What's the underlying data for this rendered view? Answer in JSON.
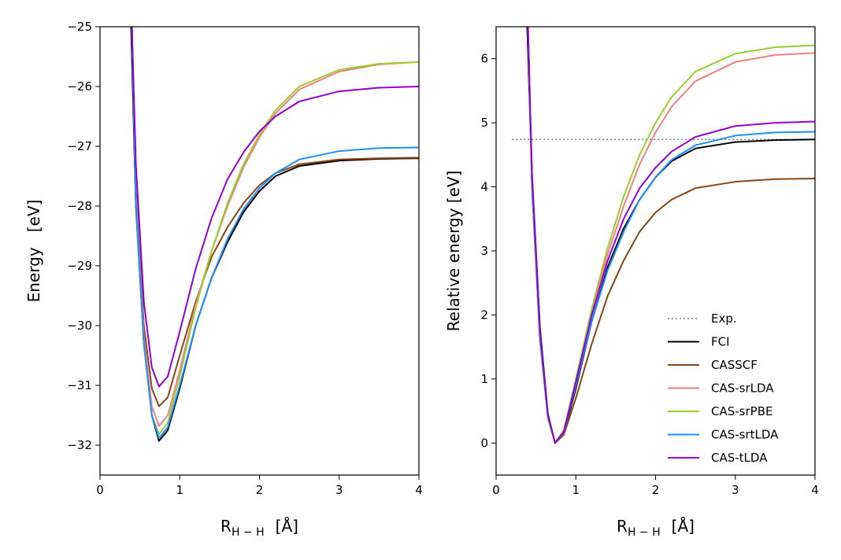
{
  "chart_data": [
    {
      "type": "line",
      "panel": "left",
      "title": "",
      "xlabel": "R",
      "xlabel_sub": "H − H",
      "xlabel_unit": "[Å]",
      "ylabel": "Energy   [eV]",
      "xlim": [
        0,
        4
      ],
      "ylim": [
        -32.5,
        -25
      ],
      "xticks": [
        0,
        1,
        2,
        3,
        4
      ],
      "xtick_labels": [
        "0",
        "1",
        "2",
        "3",
        "4"
      ],
      "yticks": [
        -32,
        -31,
        -30,
        -29,
        -28,
        -27,
        -26,
        -25
      ],
      "ytick_labels": [
        "−32",
        "−31",
        "−30",
        "−29",
        "−28",
        "−27",
        "−26",
        "−25"
      ],
      "series": [
        {
          "name": "FCI",
          "color": "#000000",
          "dashed": false,
          "points": [
            [
              0.39,
              -25.0
            ],
            [
              0.45,
              -28.0
            ],
            [
              0.55,
              -30.3
            ],
            [
              0.65,
              -31.5
            ],
            [
              0.74,
              -31.93
            ],
            [
              0.85,
              -31.75
            ],
            [
              1.0,
              -31.05
            ],
            [
              1.2,
              -30.0
            ],
            [
              1.4,
              -29.2
            ],
            [
              1.6,
              -28.6
            ],
            [
              1.8,
              -28.1
            ],
            [
              2.0,
              -27.75
            ],
            [
              2.2,
              -27.5
            ],
            [
              2.5,
              -27.33
            ],
            [
              3.0,
              -27.24
            ],
            [
              3.5,
              -27.21
            ],
            [
              4.0,
              -27.2
            ]
          ]
        },
        {
          "name": "CASSCF",
          "color": "#8b4513",
          "dashed": false,
          "points": [
            [
              0.4,
              -25.0
            ],
            [
              0.45,
              -27.7
            ],
            [
              0.55,
              -30.0
            ],
            [
              0.65,
              -31.05
            ],
            [
              0.74,
              -31.35
            ],
            [
              0.85,
              -31.2
            ],
            [
              1.0,
              -30.5
            ],
            [
              1.2,
              -29.6
            ],
            [
              1.4,
              -28.85
            ],
            [
              1.6,
              -28.35
            ],
            [
              1.8,
              -27.95
            ],
            [
              2.0,
              -27.65
            ],
            [
              2.2,
              -27.45
            ],
            [
              2.5,
              -27.3
            ],
            [
              3.0,
              -27.22
            ],
            [
              3.5,
              -27.2
            ],
            [
              4.0,
              -27.19
            ]
          ]
        },
        {
          "name": "CAS-srLDA",
          "color": "#f08080",
          "dashed": false,
          "points": [
            [
              0.4,
              -25.0
            ],
            [
              0.45,
              -27.8
            ],
            [
              0.55,
              -30.2
            ],
            [
              0.65,
              -31.35
            ],
            [
              0.74,
              -31.68
            ],
            [
              0.85,
              -31.5
            ],
            [
              1.0,
              -30.75
            ],
            [
              1.2,
              -29.65
            ],
            [
              1.4,
              -28.75
            ],
            [
              1.6,
              -28.0
            ],
            [
              1.8,
              -27.35
            ],
            [
              2.0,
              -26.85
            ],
            [
              2.2,
              -26.45
            ],
            [
              2.5,
              -26.05
            ],
            [
              3.0,
              -25.75
            ],
            [
              3.5,
              -25.63
            ],
            [
              4.0,
              -25.59
            ]
          ]
        },
        {
          "name": "CAS-srPBE",
          "color": "#9acd32",
          "dashed": false,
          "points": [
            [
              0.4,
              -25.0
            ],
            [
              0.45,
              -27.9
            ],
            [
              0.55,
              -30.3
            ],
            [
              0.65,
              -31.5
            ],
            [
              0.74,
              -31.82
            ],
            [
              0.85,
              -31.62
            ],
            [
              1.0,
              -30.85
            ],
            [
              1.2,
              -29.7
            ],
            [
              1.4,
              -28.75
            ],
            [
              1.6,
              -27.95
            ],
            [
              1.8,
              -27.3
            ],
            [
              2.0,
              -26.8
            ],
            [
              2.2,
              -26.4
            ],
            [
              2.5,
              -26.0
            ],
            [
              3.0,
              -25.72
            ],
            [
              3.5,
              -25.62
            ],
            [
              4.0,
              -25.59
            ]
          ]
        },
        {
          "name": "CAS-srtLDA",
          "color": "#1e90ff",
          "dashed": false,
          "points": [
            [
              0.4,
              -25.0
            ],
            [
              0.45,
              -27.95
            ],
            [
              0.55,
              -30.3
            ],
            [
              0.65,
              -31.5
            ],
            [
              0.74,
              -31.88
            ],
            [
              0.85,
              -31.7
            ],
            [
              1.0,
              -31.0
            ],
            [
              1.2,
              -30.0
            ],
            [
              1.4,
              -29.2
            ],
            [
              1.6,
              -28.55
            ],
            [
              1.8,
              -28.05
            ],
            [
              2.0,
              -27.7
            ],
            [
              2.2,
              -27.45
            ],
            [
              2.5,
              -27.22
            ],
            [
              3.0,
              -27.08
            ],
            [
              3.5,
              -27.03
            ],
            [
              4.0,
              -27.02
            ]
          ]
        },
        {
          "name": "CAS-tLDA",
          "color": "#9400d3",
          "dashed": false,
          "points": [
            [
              0.4,
              -25.0
            ],
            [
              0.45,
              -27.3
            ],
            [
              0.55,
              -29.6
            ],
            [
              0.65,
              -30.7
            ],
            [
              0.74,
              -31.02
            ],
            [
              0.85,
              -30.85
            ],
            [
              1.0,
              -30.1
            ],
            [
              1.2,
              -29.05
            ],
            [
              1.4,
              -28.2
            ],
            [
              1.6,
              -27.55
            ],
            [
              1.8,
              -27.1
            ],
            [
              2.0,
              -26.75
            ],
            [
              2.2,
              -26.5
            ],
            [
              2.5,
              -26.25
            ],
            [
              3.0,
              -26.08
            ],
            [
              3.5,
              -26.02
            ],
            [
              4.0,
              -26.0
            ]
          ]
        }
      ]
    },
    {
      "type": "line",
      "panel": "right",
      "title": "",
      "xlabel": "R",
      "xlabel_sub": "H − H",
      "xlabel_unit": "[Å]",
      "ylabel": "Relative energy [eV]",
      "xlim": [
        0,
        4
      ],
      "ylim": [
        -0.5,
        6.5
      ],
      "xticks": [
        0,
        1,
        2,
        3,
        4
      ],
      "xtick_labels": [
        "0",
        "1",
        "2",
        "3",
        "4"
      ],
      "yticks": [
        0,
        1,
        2,
        3,
        4,
        5,
        6
      ],
      "ytick_labels": [
        "0",
        "1",
        "2",
        "3",
        "4",
        "5",
        "6"
      ],
      "legend_position": "bottom-right",
      "series": [
        {
          "name": "Exp.",
          "color": "#808080",
          "dashed": true,
          "points": [
            [
              0.2,
              4.74
            ],
            [
              4.0,
              4.74
            ]
          ]
        },
        {
          "name": "FCI",
          "color": "#000000",
          "dashed": false,
          "points": [
            [
              0.39,
              6.5
            ],
            [
              0.45,
              4.2
            ],
            [
              0.55,
              1.8
            ],
            [
              0.65,
              0.45
            ],
            [
              0.74,
              0.0
            ],
            [
              0.85,
              0.15
            ],
            [
              1.0,
              0.85
            ],
            [
              1.2,
              1.9
            ],
            [
              1.4,
              2.75
            ],
            [
              1.6,
              3.35
            ],
            [
              1.8,
              3.8
            ],
            [
              2.0,
              4.15
            ],
            [
              2.2,
              4.4
            ],
            [
              2.5,
              4.6
            ],
            [
              3.0,
              4.7
            ],
            [
              3.5,
              4.73
            ],
            [
              4.0,
              4.74
            ]
          ]
        },
        {
          "name": "CASSCF",
          "color": "#8b4513",
          "dashed": false,
          "points": [
            [
              0.4,
              6.5
            ],
            [
              0.45,
              4.0
            ],
            [
              0.55,
              1.6
            ],
            [
              0.65,
              0.4
            ],
            [
              0.74,
              0.0
            ],
            [
              0.85,
              0.13
            ],
            [
              1.0,
              0.7
            ],
            [
              1.2,
              1.55
            ],
            [
              1.4,
              2.3
            ],
            [
              1.6,
              2.85
            ],
            [
              1.8,
              3.3
            ],
            [
              2.0,
              3.6
            ],
            [
              2.2,
              3.8
            ],
            [
              2.5,
              3.98
            ],
            [
              3.0,
              4.08
            ],
            [
              3.5,
              4.12
            ],
            [
              4.0,
              4.13
            ]
          ]
        },
        {
          "name": "CAS-srLDA",
          "color": "#f08080",
          "dashed": false,
          "points": [
            [
              0.4,
              6.5
            ],
            [
              0.45,
              4.1
            ],
            [
              0.55,
              1.65
            ],
            [
              0.65,
              0.4
            ],
            [
              0.74,
              0.0
            ],
            [
              0.85,
              0.18
            ],
            [
              1.0,
              0.95
            ],
            [
              1.2,
              2.05
            ],
            [
              1.4,
              2.95
            ],
            [
              1.6,
              3.7
            ],
            [
              1.8,
              4.35
            ],
            [
              2.0,
              4.85
            ],
            [
              2.2,
              5.25
            ],
            [
              2.5,
              5.65
            ],
            [
              3.0,
              5.95
            ],
            [
              3.5,
              6.06
            ],
            [
              4.0,
              6.09
            ]
          ]
        },
        {
          "name": "CAS-srPBE",
          "color": "#9acd32",
          "dashed": false,
          "points": [
            [
              0.4,
              6.5
            ],
            [
              0.45,
              4.1
            ],
            [
              0.55,
              1.6
            ],
            [
              0.65,
              0.38
            ],
            [
              0.74,
              0.0
            ],
            [
              0.85,
              0.2
            ],
            [
              1.0,
              1.0
            ],
            [
              1.2,
              2.1
            ],
            [
              1.4,
              3.05
            ],
            [
              1.6,
              3.85
            ],
            [
              1.8,
              4.5
            ],
            [
              2.0,
              5.0
            ],
            [
              2.2,
              5.4
            ],
            [
              2.5,
              5.8
            ],
            [
              3.0,
              6.08
            ],
            [
              3.5,
              6.18
            ],
            [
              4.0,
              6.21
            ]
          ]
        },
        {
          "name": "CAS-srtLDA",
          "color": "#1e90ff",
          "dashed": false,
          "points": [
            [
              0.4,
              6.5
            ],
            [
              0.45,
              4.1
            ],
            [
              0.55,
              1.65
            ],
            [
              0.65,
              0.42
            ],
            [
              0.74,
              0.0
            ],
            [
              0.85,
              0.17
            ],
            [
              1.0,
              0.9
            ],
            [
              1.2,
              1.9
            ],
            [
              1.4,
              2.7
            ],
            [
              1.6,
              3.3
            ],
            [
              1.8,
              3.8
            ],
            [
              2.0,
              4.15
            ],
            [
              2.2,
              4.42
            ],
            [
              2.5,
              4.65
            ],
            [
              3.0,
              4.8
            ],
            [
              3.5,
              4.85
            ],
            [
              4.0,
              4.86
            ]
          ]
        },
        {
          "name": "CAS-tLDA",
          "color": "#9400d3",
          "dashed": false,
          "points": [
            [
              0.4,
              6.5
            ],
            [
              0.45,
              4.2
            ],
            [
              0.55,
              1.75
            ],
            [
              0.65,
              0.43
            ],
            [
              0.74,
              0.0
            ],
            [
              0.85,
              0.18
            ],
            [
              1.0,
              0.95
            ],
            [
              1.2,
              2.0
            ],
            [
              1.4,
              2.85
            ],
            [
              1.6,
              3.5
            ],
            [
              1.8,
              3.98
            ],
            [
              2.0,
              4.3
            ],
            [
              2.2,
              4.55
            ],
            [
              2.5,
              4.78
            ],
            [
              3.0,
              4.95
            ],
            [
              3.5,
              5.0
            ],
            [
              4.0,
              5.02
            ]
          ]
        }
      ]
    }
  ]
}
